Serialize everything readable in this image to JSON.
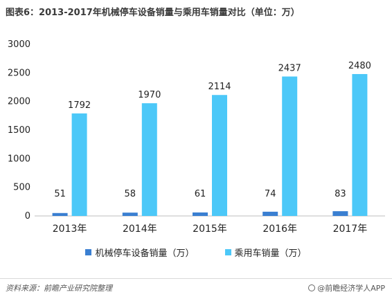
{
  "title": "图表6：2013-2017年机械停车设备销量与乘用车销量对比（单位：万）",
  "source": "资料来源：前瞻产业研究院整理",
  "brand": "@前瞻经济学人APP",
  "chart_data": {
    "type": "bar",
    "categories": [
      "2013年",
      "2014年",
      "2015年",
      "2016年",
      "2017年"
    ],
    "series": [
      {
        "name": "机械停车设备销量（万）",
        "values": [
          51,
          58,
          61,
          74,
          83
        ],
        "color": "#3a7fd1"
      },
      {
        "name": "乘用车销量（万）",
        "values": [
          1792,
          1970,
          2114,
          2437,
          2480
        ],
        "color": "#4cc8f8"
      }
    ],
    "ylim": [
      0,
      3000
    ],
    "yticks": [
      "0",
      "500",
      "1000",
      "1500",
      "2000",
      "2500",
      "3000"
    ],
    "grid": false,
    "legend_position": "bottom"
  }
}
